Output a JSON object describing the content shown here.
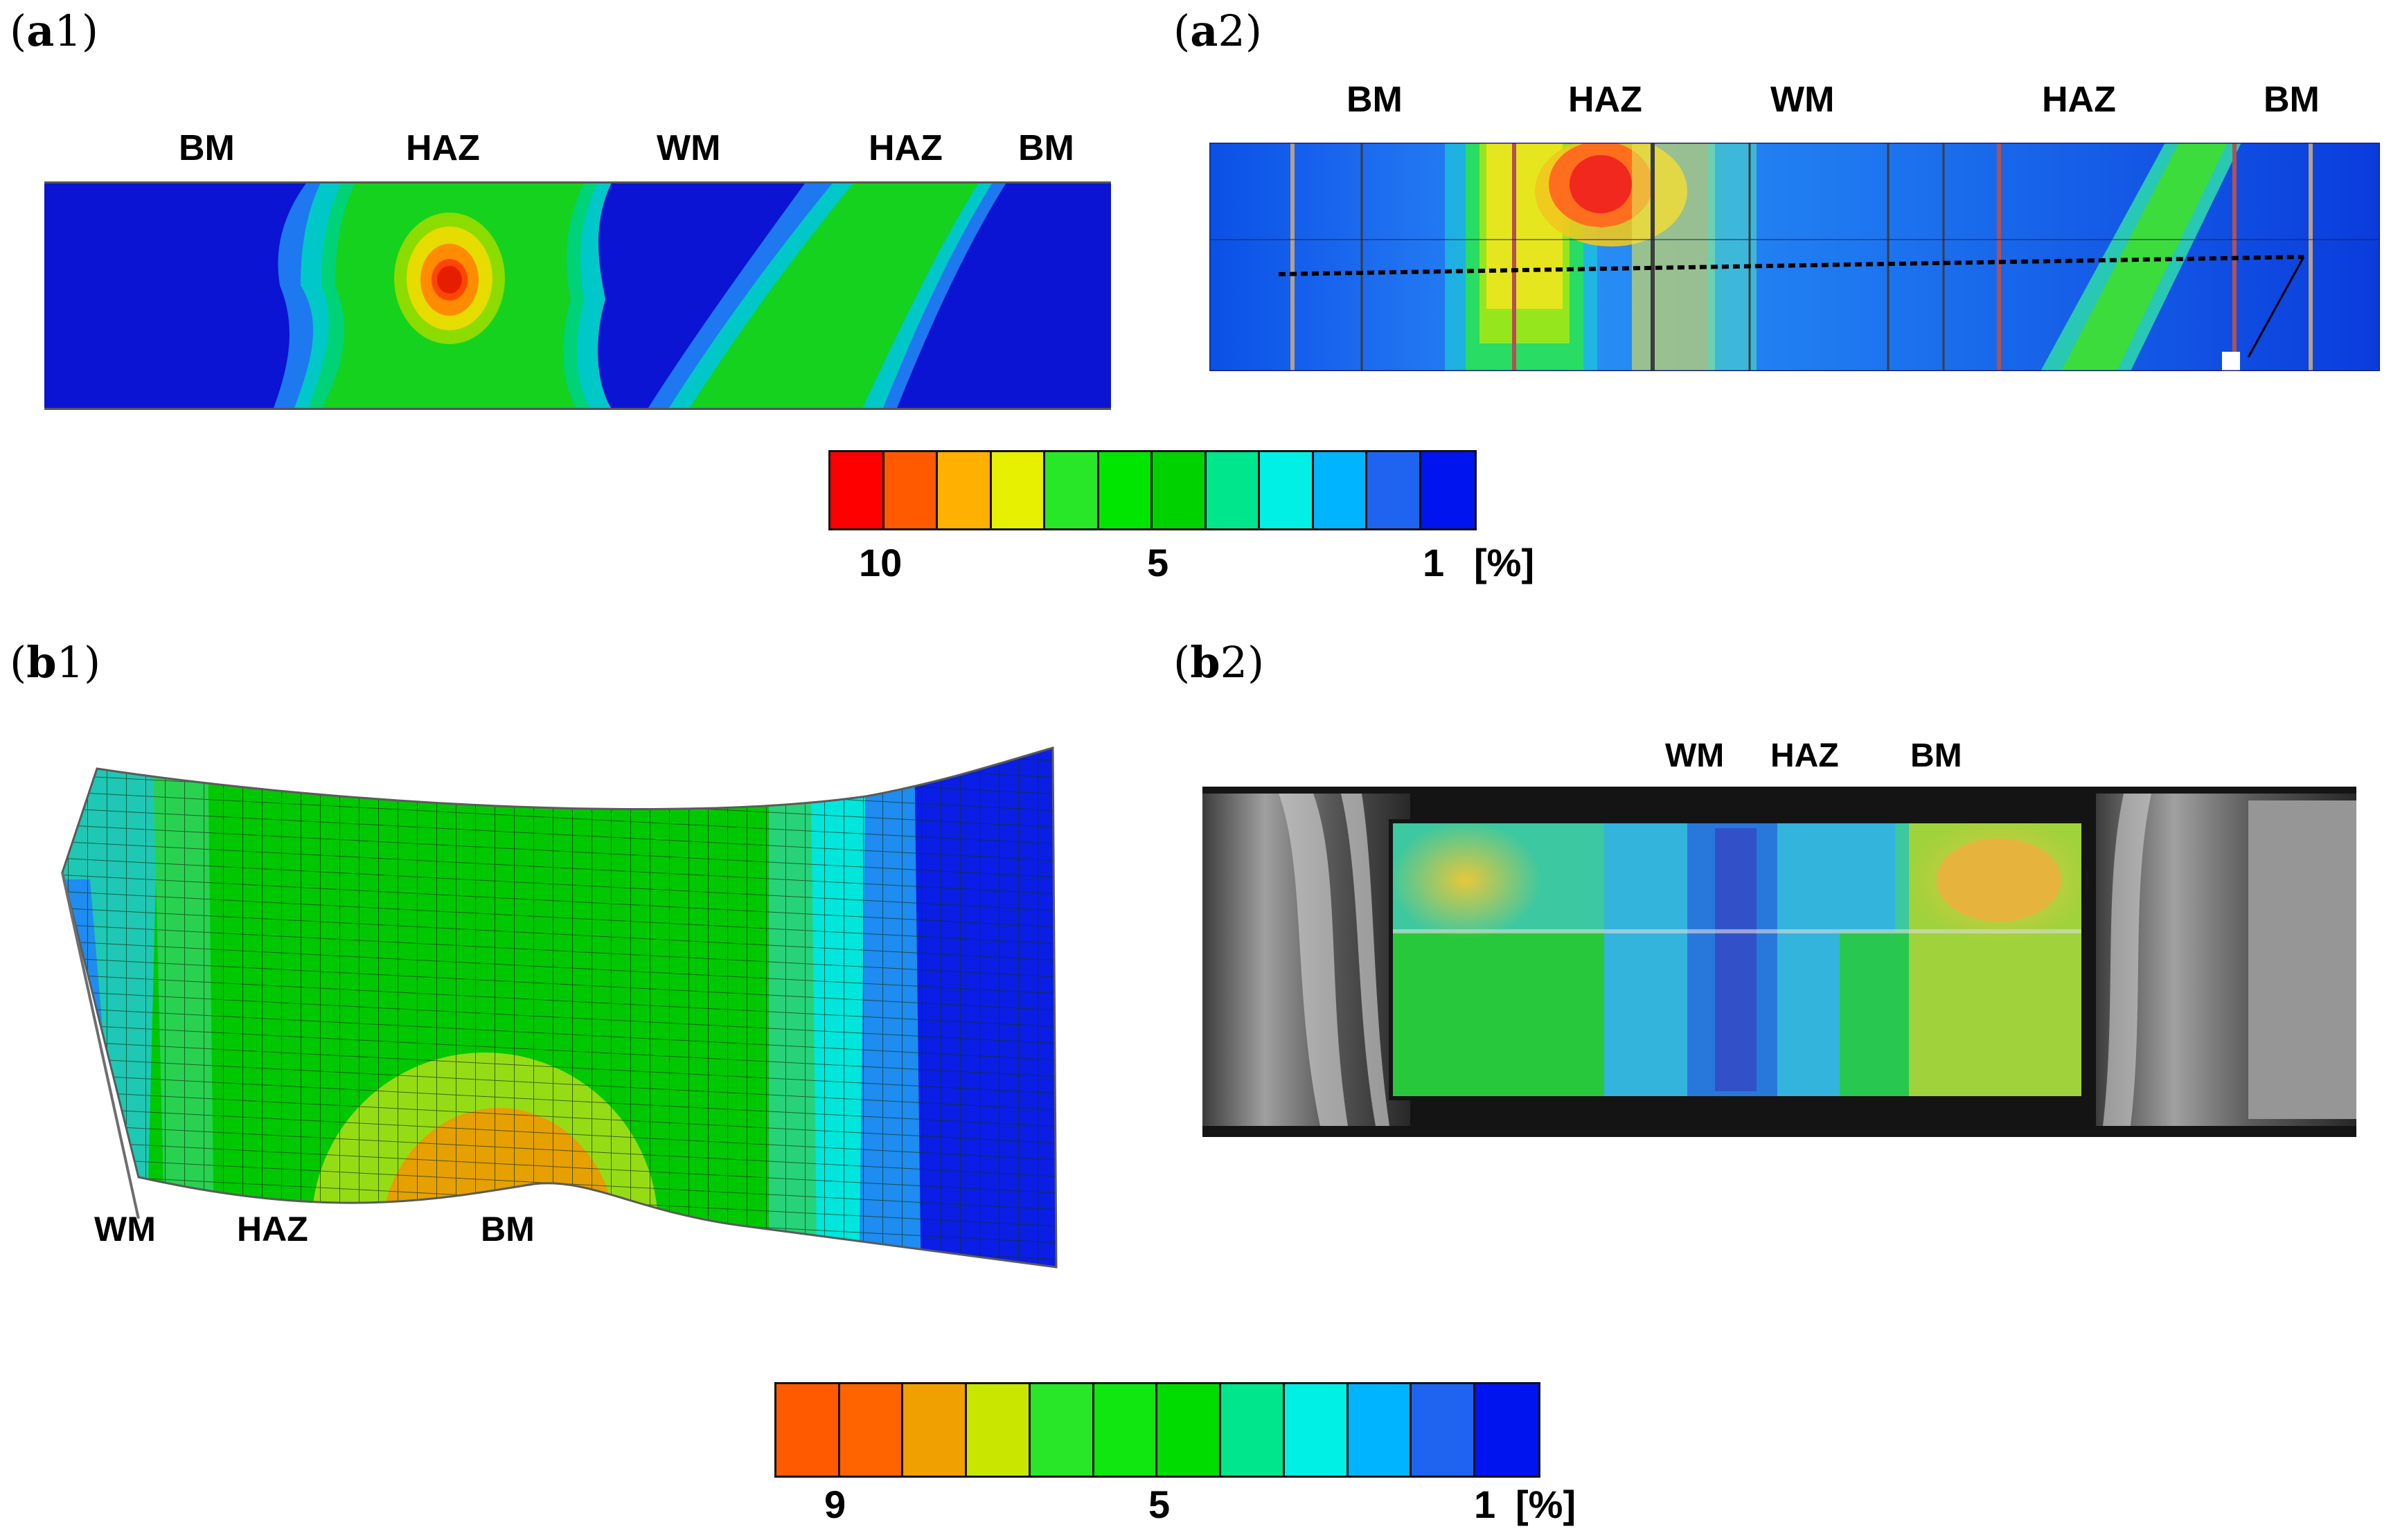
{
  "panels": {
    "a1": {
      "label_bold": "a",
      "label_rest": "1",
      "zones": [
        "BM",
        "HAZ",
        "WM",
        "HAZ",
        "BM"
      ]
    },
    "a2": {
      "label_bold": "a",
      "label_rest": "2",
      "zones": [
        "BM",
        "HAZ",
        "WM",
        "HAZ",
        "BM"
      ]
    },
    "b1": {
      "label_bold": "b",
      "label_rest": "1",
      "zones": [
        "WM",
        "HAZ",
        "BM"
      ]
    },
    "b2": {
      "label_bold": "b",
      "label_rest": "2",
      "zones": [
        "WM",
        "HAZ",
        "BM"
      ]
    }
  },
  "colorbar_a": {
    "colors": [
      "#ff0000",
      "#ff5a00",
      "#ffb000",
      "#e6f000",
      "#28e628",
      "#00e600",
      "#00d200",
      "#00e68c",
      "#00f0e6",
      "#00b4ff",
      "#1e64f0",
      "#0014f0"
    ],
    "ticks": [
      "10",
      "5",
      "1"
    ],
    "unit": "[%]"
  },
  "colorbar_b": {
    "colors": [
      "#ff5a00",
      "#ff6400",
      "#f0a000",
      "#c8e600",
      "#28e628",
      "#10e610",
      "#00dc00",
      "#00e68c",
      "#00f0e6",
      "#00b4ff",
      "#1e64f0",
      "#0014f0"
    ],
    "ticks": [
      "9",
      "5",
      "1"
    ],
    "unit": "[%]"
  }
}
